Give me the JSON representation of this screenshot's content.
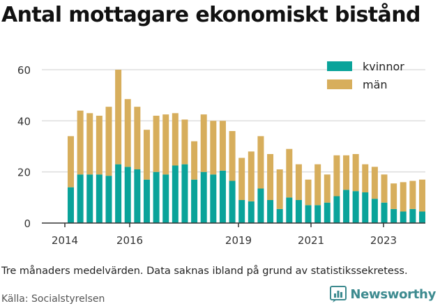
{
  "title": "Antal mottagare ekonomiskt bistånd",
  "note": "Tre månaders medelvärden. Data saknas ibland på grund av statistikssekretess.",
  "source": "Källa: Socialstyrelsen",
  "brand": "Newsworthy",
  "colors": {
    "kvinnor": "#0aa39a",
    "man": "#d7ae5c",
    "brand": "#3c8a8f"
  },
  "chart_data": {
    "type": "bar",
    "stacked": true,
    "x_ticks": [
      "2014",
      "2016",
      "2019",
      "2021",
      "2023"
    ],
    "y_ticks": [
      "0",
      "20",
      "40",
      "60"
    ],
    "ylim": [
      0,
      60
    ],
    "legend_position": "top-right",
    "grid": "horizontal",
    "series": [
      {
        "name": "kvinnor",
        "values": [
          14,
          19,
          19,
          19,
          18.5,
          23,
          22,
          21,
          17,
          20,
          19,
          22.5,
          23,
          17,
          20,
          19,
          20.5,
          16.5,
          9,
          8.5,
          13.5,
          9,
          5.5,
          10,
          9,
          7,
          7,
          8,
          10.5,
          13,
          12.5,
          12,
          9.5,
          8,
          5.5,
          4.5,
          5.5,
          4.5
        ]
      },
      {
        "name": "män",
        "values": [
          20,
          25,
          24,
          23,
          27,
          37,
          26.5,
          24.5,
          19.5,
          22,
          23.5,
          20.5,
          17.5,
          15,
          22.5,
          21,
          19.5,
          19.5,
          16.5,
          19.5,
          20.5,
          18,
          15.5,
          19,
          14,
          10,
          16,
          11,
          16,
          13.5,
          14.5,
          11,
          12.5,
          11,
          10,
          11.5,
          11,
          12.5
        ]
      }
    ]
  }
}
